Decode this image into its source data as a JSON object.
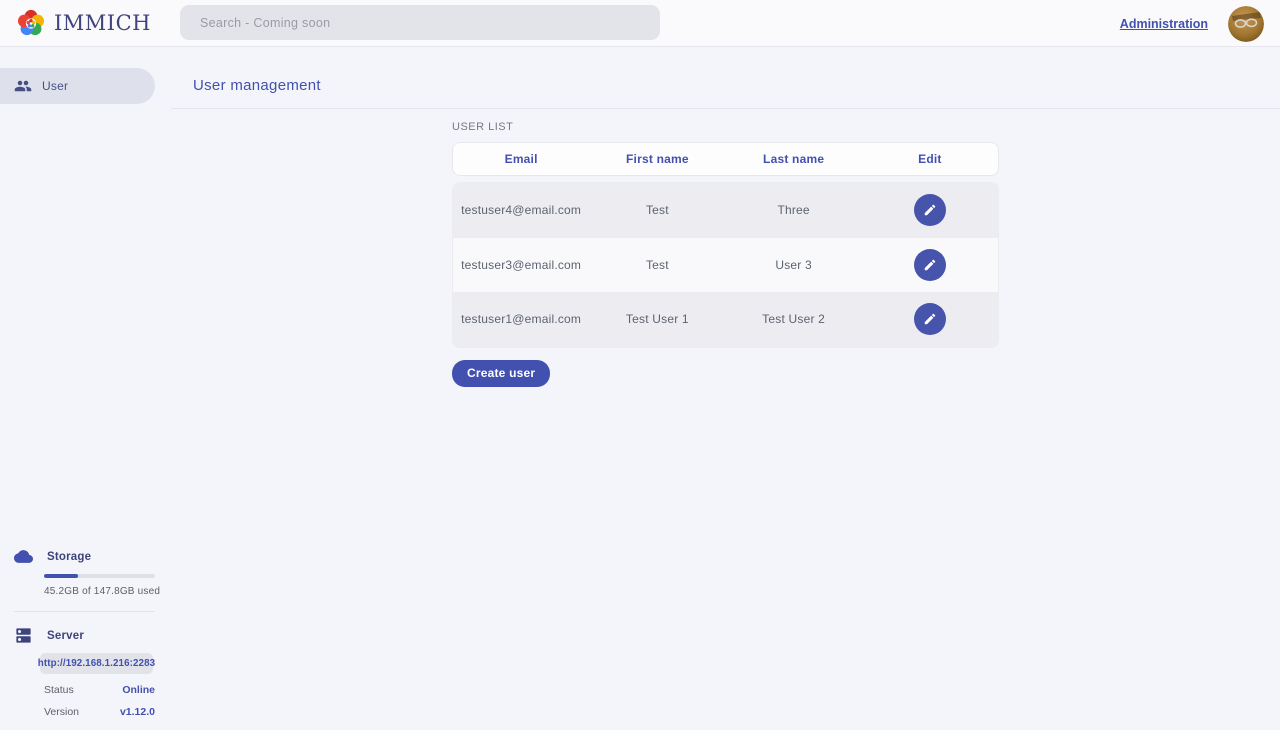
{
  "nav": {
    "brand": "IMMICH",
    "search_placeholder": "Search - Coming soon",
    "admin_link": "Administration"
  },
  "sidebar": {
    "items": [
      {
        "label": "User",
        "active": true
      }
    ],
    "storage": {
      "title": "Storage",
      "usage_text": "45.2GB of 147.8GB used",
      "percent_used": 30.6
    },
    "server": {
      "title": "Server",
      "url": "http://192.168.1.216:2283",
      "status_label": "Status",
      "status_value": "Online",
      "version_label": "Version",
      "version_value": "v1.12.0"
    }
  },
  "main": {
    "page_title": "User management",
    "section_title": "USER LIST",
    "table": {
      "columns": [
        "Email",
        "First name",
        "Last name",
        "Edit"
      ],
      "rows": [
        {
          "email": "testuser4@email.com",
          "first_name": "Test",
          "last_name": "Three"
        },
        {
          "email": "testuser3@email.com",
          "first_name": "Test",
          "last_name": "User 3"
        },
        {
          "email": "testuser1@email.com",
          "first_name": "Test User 1",
          "last_name": "Test User 2"
        }
      ]
    },
    "create_button": "Create user"
  },
  "icons": {
    "logo": "immich-flower-icon",
    "sidebar_user": "users-group-icon",
    "storage": "cloud-icon",
    "server": "server-rack-icon",
    "edit": "pencil-icon"
  },
  "colors": {
    "primary": "#4250af",
    "status_online": "#4250af",
    "page_background": "#f4f5fa",
    "row_alt_background": "#ededf1"
  }
}
